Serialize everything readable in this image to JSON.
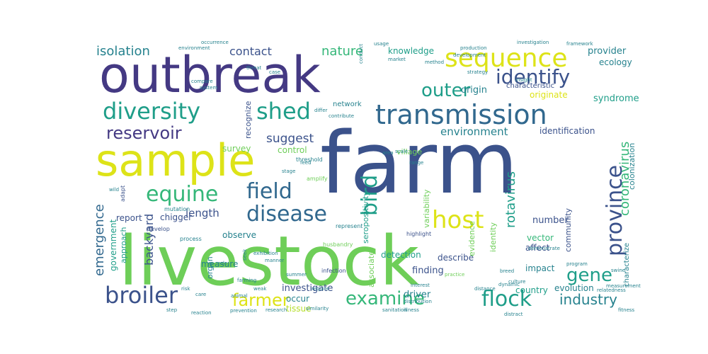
{
  "palette": {
    "purple": "#443983",
    "indigo": "#3b528b",
    "blue": "#31688e",
    "teal": "#26828e",
    "green": "#1f9e89",
    "lightgreen": "#35b779",
    "lime": "#6ece58",
    "yellowgreen": "#b5de2b",
    "yellow": "#dde318"
  },
  "words": [
    {
      "text": "farm",
      "color": "indigo"
    },
    {
      "text": "livestock",
      "color": "lime"
    },
    {
      "text": "outbreak",
      "color": "purple"
    },
    {
      "text": "sample",
      "color": "yellow"
    },
    {
      "text": "transmission",
      "color": "blue"
    },
    {
      "text": "diversity",
      "color": "green"
    },
    {
      "text": "sequence",
      "color": "yellow"
    },
    {
      "text": "identify",
      "color": "indigo"
    },
    {
      "text": "shed",
      "color": "green"
    },
    {
      "text": "outer",
      "color": "green"
    },
    {
      "text": "host",
      "color": "yellow"
    },
    {
      "text": "disease",
      "color": "blue"
    },
    {
      "text": "field",
      "color": "blue"
    },
    {
      "text": "bird",
      "color": "green"
    },
    {
      "text": "province",
      "color": "indigo"
    },
    {
      "text": "broiler",
      "color": "indigo"
    },
    {
      "text": "equine",
      "color": "lightgreen"
    },
    {
      "text": "reservoir",
      "color": "purple"
    },
    {
      "text": "flock",
      "color": "green"
    },
    {
      "text": "farmer",
      "color": "yellow"
    },
    {
      "text": "examine",
      "color": "lightgreen"
    },
    {
      "text": "gene",
      "color": "green"
    },
    {
      "text": "industry",
      "color": "teal"
    },
    {
      "text": "coronavirus",
      "color": "lightgreen"
    },
    {
      "text": "isolation",
      "color": "teal"
    },
    {
      "text": "contact",
      "color": "indigo"
    },
    {
      "text": "nature",
      "color": "lightgreen"
    },
    {
      "text": "suggest",
      "color": "indigo"
    },
    {
      "text": "environment",
      "color": "teal"
    },
    {
      "text": "rotavirus",
      "color": "green"
    },
    {
      "text": "emergence",
      "color": "blue"
    },
    {
      "text": "backyard",
      "color": "indigo"
    },
    {
      "text": "length",
      "color": "indigo"
    },
    {
      "text": "knowledge",
      "color": "green"
    },
    {
      "text": "origin",
      "color": "teal"
    },
    {
      "text": "originate",
      "color": "yellow"
    },
    {
      "text": "syndrome",
      "color": "green"
    },
    {
      "text": "provider",
      "color": "teal"
    },
    {
      "text": "ecology",
      "color": "teal"
    },
    {
      "text": "characteristic",
      "color": "indigo"
    },
    {
      "text": "identification",
      "color": "indigo"
    },
    {
      "text": "colonization",
      "color": "teal"
    },
    {
      "text": "number",
      "color": "indigo"
    },
    {
      "text": "vector",
      "color": "lightgreen"
    },
    {
      "text": "community",
      "color": "indigo"
    },
    {
      "text": "affect",
      "color": "indigo"
    },
    {
      "text": "impact",
      "color": "teal"
    },
    {
      "text": "country",
      "color": "green"
    },
    {
      "text": "driver",
      "color": "teal"
    },
    {
      "text": "evolution",
      "color": "teal"
    },
    {
      "text": "investigate",
      "color": "indigo"
    },
    {
      "text": "finding",
      "color": "indigo"
    },
    {
      "text": "detection",
      "color": "green"
    },
    {
      "text": "describe",
      "color": "indigo"
    },
    {
      "text": "evidence",
      "color": "lime"
    },
    {
      "text": "identity",
      "color": "lime"
    },
    {
      "text": "variability",
      "color": "lime"
    },
    {
      "text": "seropositivity",
      "color": "green"
    },
    {
      "text": "network",
      "color": "teal"
    },
    {
      "text": "recognize",
      "color": "indigo"
    },
    {
      "text": "survey",
      "color": "lime"
    },
    {
      "text": "control",
      "color": "lime"
    },
    {
      "text": "village",
      "color": "lime"
    },
    {
      "text": "report",
      "color": "indigo"
    },
    {
      "text": "chigger",
      "color": "indigo"
    },
    {
      "text": "observe",
      "color": "teal"
    },
    {
      "text": "measure",
      "color": "teal"
    },
    {
      "text": "government",
      "color": "green"
    },
    {
      "text": "approach",
      "color": "green"
    },
    {
      "text": "organ",
      "color": "teal"
    },
    {
      "text": "occur",
      "color": "teal"
    },
    {
      "text": "tissue",
      "color": "yellowgreen"
    },
    {
      "text": "associate",
      "color": "lime"
    },
    {
      "text": "characterize",
      "color": "teal"
    },
    {
      "text": "amplify",
      "color": "lime"
    },
    {
      "text": "threshold",
      "color": "teal"
    },
    {
      "text": "represent",
      "color": "teal"
    },
    {
      "text": "highlight",
      "color": "indigo"
    },
    {
      "text": "husbandry",
      "color": "lime"
    },
    {
      "text": "infection",
      "color": "indigo"
    },
    {
      "text": "adapt",
      "color": "indigo"
    },
    {
      "text": "develop",
      "color": "indigo"
    },
    {
      "text": "process",
      "color": "teal"
    },
    {
      "text": "mutation",
      "color": "teal"
    },
    {
      "text": "strategy",
      "color": "teal"
    },
    {
      "text": "development",
      "color": "teal"
    },
    {
      "text": "production",
      "color": "teal"
    },
    {
      "text": "investigation",
      "color": "teal"
    },
    {
      "text": "insight",
      "color": "teal"
    },
    {
      "text": "demonstrate",
      "color": "teal"
    },
    {
      "text": "distance",
      "color": "teal"
    },
    {
      "text": "interest",
      "color": "teal"
    },
    {
      "text": "practice",
      "color": "lime"
    },
    {
      "text": "distribution",
      "color": "teal"
    },
    {
      "text": "sanitation",
      "color": "teal"
    },
    {
      "text": "illness",
      "color": "teal"
    },
    {
      "text": "prevention",
      "color": "teal"
    },
    {
      "text": "research",
      "color": "teal"
    },
    {
      "text": "similarity",
      "color": "teal"
    },
    {
      "text": "require",
      "color": "teal"
    },
    {
      "text": "distract",
      "color": "teal"
    },
    {
      "text": "culture",
      "color": "teal"
    },
    {
      "text": "breed",
      "color": "teal"
    },
    {
      "text": "dynamic",
      "color": "teal"
    },
    {
      "text": "program",
      "color": "teal"
    },
    {
      "text": "relatedness",
      "color": "teal"
    },
    {
      "text": "framework",
      "color": "teal"
    },
    {
      "text": "occurrence",
      "color": "teal"
    },
    {
      "text": "environment",
      "color": "teal"
    },
    {
      "text": "usage",
      "color": "teal"
    },
    {
      "text": "market",
      "color": "teal"
    },
    {
      "text": "method",
      "color": "teal"
    },
    {
      "text": "conduct",
      "color": "teal"
    },
    {
      "text": "threat",
      "color": "teal"
    },
    {
      "text": "differ",
      "color": "teal"
    },
    {
      "text": "contribute",
      "color": "teal"
    },
    {
      "text": "compare",
      "color": "teal"
    },
    {
      "text": "system",
      "color": "teal"
    },
    {
      "text": "case",
      "color": "teal"
    },
    {
      "text": "area",
      "color": "teal"
    },
    {
      "text": "scale",
      "color": "teal"
    },
    {
      "text": "range",
      "color": "teal"
    },
    {
      "text": "role",
      "color": "teal"
    },
    {
      "text": "step",
      "color": "teal"
    },
    {
      "text": "reaction",
      "color": "teal"
    },
    {
      "text": "measurement",
      "color": "teal"
    },
    {
      "text": "fitness",
      "color": "teal"
    },
    {
      "text": "swine",
      "color": "teal"
    },
    {
      "text": "farming",
      "color": "teal"
    },
    {
      "text": "risk",
      "color": "teal"
    },
    {
      "text": "care",
      "color": "teal"
    },
    {
      "text": "seek",
      "color": "teal"
    },
    {
      "text": "exhibition",
      "color": "teal"
    },
    {
      "text": "summer",
      "color": "teal"
    },
    {
      "text": "wild",
      "color": "teal"
    },
    {
      "text": "weak",
      "color": "teal"
    },
    {
      "text": "manner",
      "color": "teal"
    },
    {
      "text": "animal",
      "color": "teal"
    },
    {
      "text": "feed",
      "color": "teal"
    },
    {
      "text": "stage",
      "color": "teal"
    },
    {
      "text": "resolve",
      "color": "teal"
    },
    {
      "text": "survival",
      "color": "teal"
    }
  ]
}
